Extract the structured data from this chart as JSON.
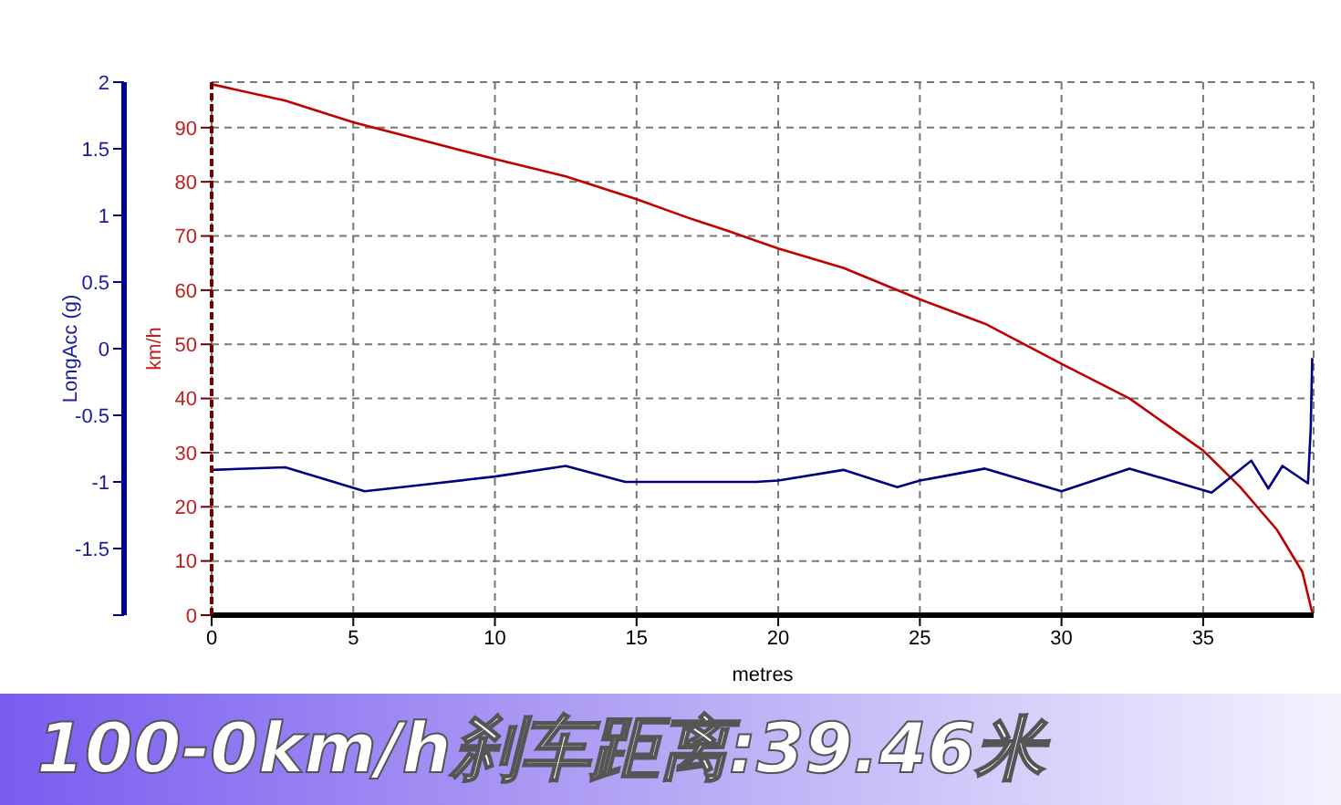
{
  "chart_data": {
    "type": "line",
    "title": "100-0km/h刹车距离:39.46米",
    "xlabel": "metres",
    "ylabel": "km/h",
    "y2label": "LongAcc (g)",
    "xlim": [
      0,
      38.9
    ],
    "xticks": [
      0,
      5,
      10,
      15,
      20,
      25,
      30,
      35
    ],
    "ylim": [
      0,
      98.4
    ],
    "yticks": [
      0,
      10,
      20,
      30,
      40,
      50,
      60,
      70,
      80,
      90
    ],
    "y2lim": [
      -2,
      2
    ],
    "y2ticks": [
      {
        "value": -2,
        "label": null
      },
      -1.5,
      -1,
      -0.5,
      0,
      0.5,
      1,
      1.5,
      2
    ],
    "grid": true,
    "marker": "none",
    "line_style": "solid",
    "series": [
      {
        "color": "#c00000",
        "x": [
          0,
          2.6,
          5,
          10,
          12.5,
          15,
          16.8,
          18.3,
          20,
          22.3,
          25,
          27.3,
          30,
          32.4,
          35,
          36.3,
          37.6,
          38.5,
          38.85
        ],
        "values": [
          98,
          95,
          91,
          84.2,
          81,
          76.8,
          73.4,
          70.8,
          67.7,
          64.1,
          58.3,
          53.8,
          46.4,
          40,
          30.4,
          23.7,
          15.8,
          8,
          0.5
        ]
      },
      {
        "color": "#000080",
        "axis": "y2",
        "x": [
          0,
          2.6,
          5.4,
          7.5,
          10,
          12.5,
          14.6,
          19.2,
          20,
          22.3,
          24.2,
          25,
          27.3,
          30,
          32.4,
          35.3,
          36.7,
          37.3,
          37.8,
          38.7,
          38.8,
          38.85
        ],
        "values": [
          -0.91,
          -0.89,
          -1.07,
          -1.02,
          -0.96,
          -0.88,
          -1,
          -1,
          -0.99,
          -0.91,
          -1.04,
          -0.99,
          -0.9,
          -1.07,
          -0.9,
          -1.08,
          -0.84,
          -1.05,
          -0.88,
          -1.01,
          -0.59,
          -0.07
        ]
      }
    ]
  }
}
